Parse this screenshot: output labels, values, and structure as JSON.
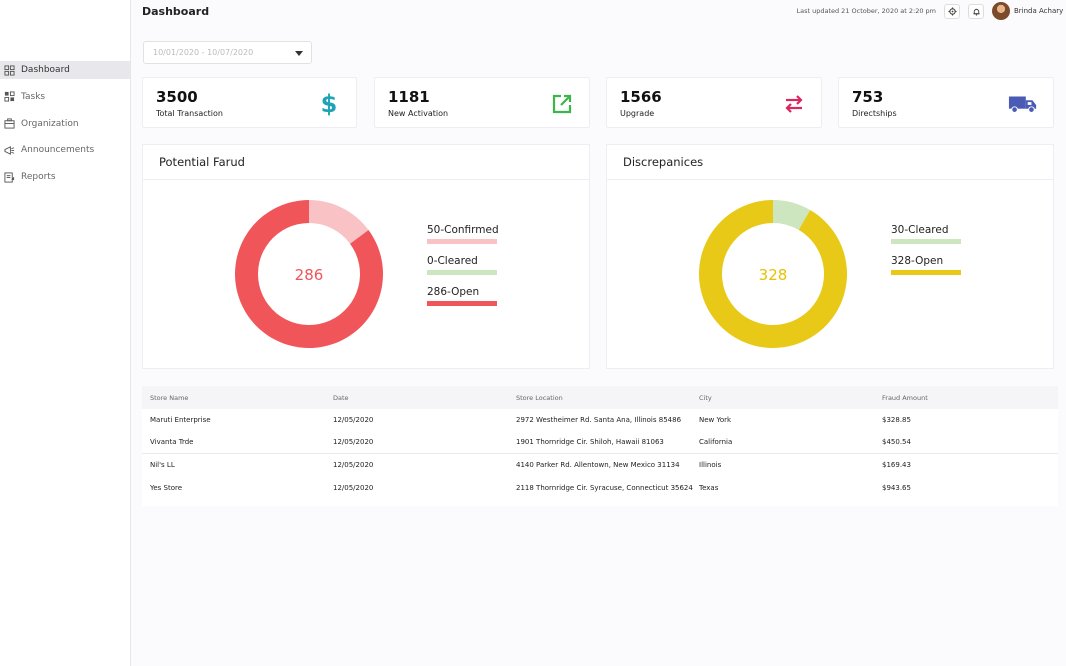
{
  "sidebar": {
    "items": [
      {
        "label": "Dashboard",
        "icon": "dashboard-icon",
        "active": true
      },
      {
        "label": "Tasks",
        "icon": "tasks-icon",
        "active": false
      },
      {
        "label": "Organization",
        "icon": "organization-icon",
        "active": false
      },
      {
        "label": "Announcements",
        "icon": "megaphone-icon",
        "active": false
      },
      {
        "label": "Reports",
        "icon": "reports-icon",
        "active": false
      }
    ]
  },
  "header": {
    "title": "Dashboard",
    "last_updated": "Last updated 21 October, 2020 at 2:20 pm",
    "user_name": "Brinda Achary"
  },
  "date_range": {
    "value": "10/01/2020 - 10/07/2020"
  },
  "stats": [
    {
      "value": "3500",
      "label": "Total Transaction",
      "icon": "dollar-icon",
      "color": "#1fa3b5"
    },
    {
      "value": "1181",
      "label": "New Activation",
      "icon": "external-link-icon",
      "color": "#3cb54a"
    },
    {
      "value": "1566",
      "label": "Upgrade",
      "icon": "swap-arrows-icon",
      "color": "#e0245e"
    },
    {
      "value": "753",
      "label": "Directships",
      "icon": "truck-icon",
      "color": "#4a5bb5"
    }
  ],
  "charts": {
    "fraud": {
      "title": "Potential Farud",
      "center": "286",
      "center_color": "#f0555a",
      "legend": [
        {
          "label": "50-Confirmed",
          "color": "#f9c3c6",
          "value": 50
        },
        {
          "label": "0-Cleared",
          "color": "#cde6c0",
          "value": 0
        },
        {
          "label": "286-Open",
          "color": "#f0555a",
          "value": 286
        }
      ]
    },
    "discrepancies": {
      "title": "Discrepanices",
      "center": "328",
      "center_color": "#e8c200",
      "legend": [
        {
          "label": "30-Cleared",
          "color": "#cde6c0",
          "value": 30
        },
        {
          "label": "328-Open",
          "color": "#e8c918",
          "value": 328
        }
      ]
    }
  },
  "table": {
    "headers": [
      "Store Name",
      "Date",
      "Store Location",
      "City",
      "Fraud Amount"
    ],
    "rows": [
      [
        "Maruti Enterprise",
        "12/05/2020",
        "2972 Westheimer Rd. Santa Ana, Illinois 85486",
        "New York",
        "$328.85"
      ],
      [
        "Vivanta Trde",
        "12/05/2020",
        "1901 Thornridge Cir. Shiloh, Hawaii 81063",
        "California",
        "$450.54"
      ],
      [
        "Nil's LL",
        "12/05/2020",
        "4140 Parker Rd. Allentown, New Mexico 31134",
        "Illinois",
        "$169.43"
      ],
      [
        "Yes Store",
        "12/05/2020",
        "2118 Thornridge Cir. Syracuse, Connecticut 35624",
        "Texas",
        "$943.65"
      ]
    ]
  }
}
